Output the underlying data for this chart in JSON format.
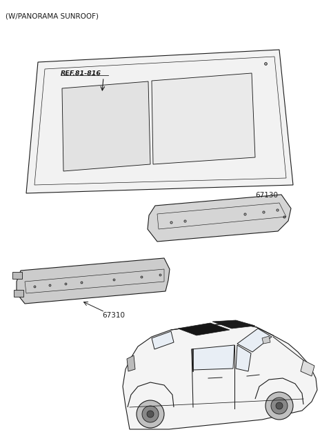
{
  "title": "(W/PANORAMA SUNROOF)",
  "background_color": "#ffffff",
  "text_color": "#1a1a1a",
  "part_numbers": {
    "ref": "REF.81-816",
    "p67130": "67130",
    "p67310": "67310"
  },
  "figsize": [
    4.8,
    6.39
  ],
  "dpi": 100
}
